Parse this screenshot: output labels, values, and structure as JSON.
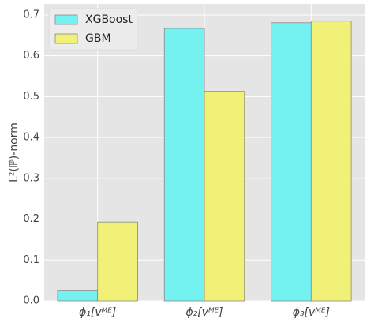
{
  "chart_data": {
    "type": "bar",
    "ylabel": "L²(ℙ)-norm",
    "categories": [
      "ϕ₁[vᴹᴱ]",
      "ϕ₂[vᴹᴱ]",
      "ϕ₃[vᴹᴱ]"
    ],
    "series": [
      {
        "name": "XGBoost",
        "color": "#74f1f1",
        "values": [
          0.026,
          0.667,
          0.681
        ]
      },
      {
        "name": "GBM",
        "color": "#f1f178",
        "values": [
          0.193,
          0.513,
          0.685
        ]
      }
    ],
    "ylim": [
      0,
      0.727
    ],
    "yticks": [
      {
        "value": 0,
        "label": "0.0"
      },
      0.1,
      0.2,
      0.3,
      0.4,
      0.5,
      0.6,
      0.7
    ],
    "grid": true,
    "legend": "upper-left"
  }
}
